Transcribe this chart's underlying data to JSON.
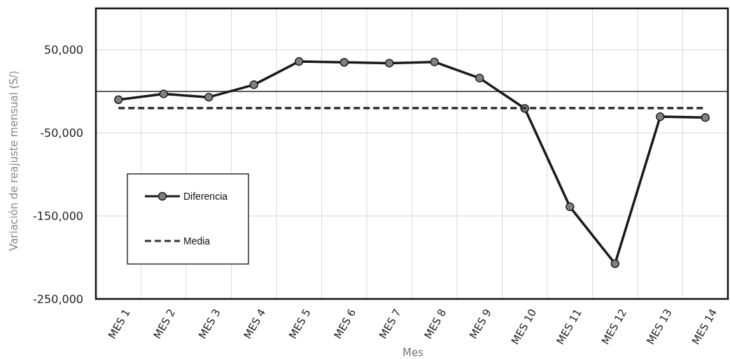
{
  "chart_data": {
    "type": "line",
    "xlabel": "Mes",
    "ylabel": "Variación de reajuste mensual (S/)",
    "categories": [
      "MES 1",
      "MES 2",
      "MES 3",
      "MES 4",
      "MES 5",
      "MES 6",
      "MES 7",
      "MES 8",
      "MES 9",
      "MES 10",
      "MES 11",
      "MES 12",
      "MES 13",
      "MES 14"
    ],
    "series": [
      {
        "name": "Diferencia",
        "color": "#1a1a1a",
        "marker": "circle",
        "line_style": "solid",
        "values": [
          -10000,
          -3000,
          -7000,
          8000,
          36000,
          35000,
          34000,
          35500,
          16000,
          -20500,
          -139000,
          -207500,
          -30500,
          -31500
        ]
      },
      {
        "name": "Media",
        "color": "#333333",
        "marker": "none",
        "line_style": "dashed",
        "values": [
          -20000,
          -20000,
          -20000,
          -20000,
          -20000,
          -20000,
          -20000,
          -20000,
          -20000,
          -20000,
          -20000,
          -20000,
          -20000,
          -20000
        ]
      }
    ],
    "ylim": [
      -250000,
      100000
    ],
    "yticks": [
      {
        "value": 50000,
        "label": "50,000"
      },
      {
        "value": -50000,
        "label": "-50,000"
      },
      {
        "value": -150000,
        "label": "-150,000"
      },
      {
        "value": -250000,
        "label": "-250,000"
      }
    ],
    "ref_lines": [
      {
        "axis": "y",
        "value": 0,
        "color": "#000000"
      }
    ],
    "grid": true,
    "legend": "left"
  }
}
